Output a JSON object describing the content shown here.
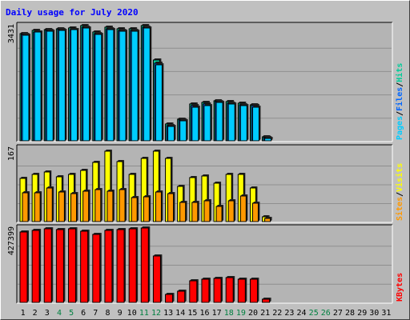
{
  "title": "Daily usage for July 2020",
  "colors": {
    "background": "#c0c0c0",
    "plot_bg": "#b4b4b4",
    "gridline": "#8f8f8f",
    "hits": "#00cc99",
    "files": "#0066ff",
    "pages": "#00ccff",
    "visits": "#ffff00",
    "sites": "#ff9900",
    "kbytes": "#ff0000",
    "title": "#0000ff",
    "weekend_day": "#008040",
    "weekday": "#000000"
  },
  "chart_data": [
    {
      "type": "bar",
      "title": "Daily usage for July 2020",
      "panel": "hits-files-pages",
      "ymax_label": "3431",
      "ylim": [
        0,
        3431
      ],
      "legend": [
        {
          "name": "Pages",
          "color": "#00ccff"
        },
        {
          "name": "Files",
          "color": "#0066ff"
        },
        {
          "name": "Hits",
          "color": "#00cc99"
        }
      ],
      "categories": [
        "1",
        "2",
        "3",
        "4",
        "5",
        "6",
        "7",
        "8",
        "9",
        "10",
        "11",
        "12",
        "13",
        "14",
        "15",
        "16",
        "17",
        "18",
        "19",
        "20",
        "21",
        "22",
        "23",
        "24",
        "25",
        "26",
        "27",
        "28",
        "29",
        "30",
        "31"
      ],
      "series": [
        {
          "name": "Hits",
          "values": [
            3200,
            3290,
            3320,
            3330,
            3370,
            3430,
            3240,
            3380,
            3330,
            3330,
            3430,
            2400,
            500,
            650,
            1090,
            1140,
            1200,
            1160,
            1110,
            1080,
            110,
            0,
            0,
            0,
            0,
            0,
            0,
            0,
            0,
            0,
            0
          ]
        },
        {
          "name": "Files",
          "values": [
            3160,
            3250,
            3280,
            3300,
            3320,
            3380,
            3190,
            3330,
            3280,
            3280,
            3380,
            2300,
            460,
            610,
            1040,
            1100,
            1170,
            1120,
            1080,
            1050,
            90,
            0,
            0,
            0,
            0,
            0,
            0,
            0,
            0,
            0,
            0
          ]
        },
        {
          "name": "Pages",
          "values": [
            3140,
            3230,
            3260,
            3280,
            3300,
            3350,
            3170,
            3310,
            3260,
            3260,
            3360,
            2260,
            440,
            590,
            1000,
            1060,
            1140,
            1090,
            1050,
            1010,
            70,
            0,
            0,
            0,
            0,
            0,
            0,
            0,
            0,
            0,
            0
          ]
        }
      ]
    },
    {
      "type": "bar",
      "panel": "visits-sites",
      "ymax_label": "167",
      "ylim": [
        0,
        167
      ],
      "legend": [
        {
          "name": "Sites",
          "color": "#ff9900"
        },
        {
          "name": "Visits",
          "color": "#ffff00"
        }
      ],
      "categories": [
        "1",
        "2",
        "3",
        "4",
        "5",
        "6",
        "7",
        "8",
        "9",
        "10",
        "11",
        "12",
        "13",
        "14",
        "15",
        "16",
        "17",
        "18",
        "19",
        "20",
        "21",
        "22",
        "23",
        "24",
        "25",
        "26",
        "27",
        "28",
        "29",
        "30",
        "31"
      ],
      "series": [
        {
          "name": "Visits",
          "values": [
            98,
            108,
            113,
            101,
            108,
            116,
            134,
            160,
            137,
            108,
            143,
            160,
            144,
            80,
            99,
            103,
            87,
            108,
            107,
            76,
            10,
            0,
            0,
            0,
            0,
            0,
            0,
            0,
            0,
            0,
            0
          ]
        },
        {
          "name": "Sites",
          "values": [
            66,
            66,
            76,
            68,
            64,
            69,
            72,
            69,
            72,
            54,
            57,
            68,
            63,
            43,
            43,
            48,
            35,
            48,
            58,
            42,
            8,
            0,
            0,
            0,
            0,
            0,
            0,
            0,
            0,
            0,
            0
          ]
        }
      ]
    },
    {
      "type": "bar",
      "panel": "kbytes",
      "ymax_label": "427399",
      "ylim": [
        0,
        427399
      ],
      "legend": [
        {
          "name": "KBytes",
          "color": "#ff0000"
        }
      ],
      "categories": [
        "1",
        "2",
        "3",
        "4",
        "5",
        "6",
        "7",
        "8",
        "9",
        "10",
        "11",
        "12",
        "13",
        "14",
        "15",
        "16",
        "17",
        "18",
        "19",
        "20",
        "21",
        "22",
        "23",
        "24",
        "25",
        "26",
        "27",
        "28",
        "29",
        "30",
        "31"
      ],
      "series": [
        {
          "name": "KBytes",
          "values": [
            403000,
            413000,
            421000,
            419000,
            421000,
            409000,
            392000,
            414000,
            419000,
            421000,
            427000,
            267000,
            48000,
            66000,
            123000,
            134000,
            137000,
            141000,
            135000,
            133000,
            17000,
            0,
            0,
            0,
            0,
            0,
            0,
            0,
            0,
            0,
            0
          ]
        }
      ]
    }
  ],
  "day_labels": [
    {
      "text": "1",
      "weekend": false
    },
    {
      "text": "2",
      "weekend": false
    },
    {
      "text": "3",
      "weekend": false
    },
    {
      "text": "4",
      "weekend": true
    },
    {
      "text": "5",
      "weekend": true
    },
    {
      "text": "6",
      "weekend": false
    },
    {
      "text": "7",
      "weekend": false
    },
    {
      "text": "8",
      "weekend": false
    },
    {
      "text": "9",
      "weekend": false
    },
    {
      "text": "10",
      "weekend": false
    },
    {
      "text": "11",
      "weekend": true
    },
    {
      "text": "12",
      "weekend": true
    },
    {
      "text": "13",
      "weekend": false
    },
    {
      "text": "14",
      "weekend": false
    },
    {
      "text": "15",
      "weekend": false
    },
    {
      "text": "16",
      "weekend": false
    },
    {
      "text": "17",
      "weekend": false
    },
    {
      "text": "18",
      "weekend": true
    },
    {
      "text": "19",
      "weekend": true
    },
    {
      "text": "20",
      "weekend": false
    },
    {
      "text": "21",
      "weekend": false
    },
    {
      "text": "22",
      "weekend": false
    },
    {
      "text": "23",
      "weekend": false
    },
    {
      "text": "24",
      "weekend": false
    },
    {
      "text": "25",
      "weekend": true
    },
    {
      "text": "26",
      "weekend": true
    },
    {
      "text": "27",
      "weekend": false
    },
    {
      "text": "28",
      "weekend": false
    },
    {
      "text": "29",
      "weekend": false
    },
    {
      "text": "30",
      "weekend": false
    },
    {
      "text": "31",
      "weekend": false
    }
  ]
}
